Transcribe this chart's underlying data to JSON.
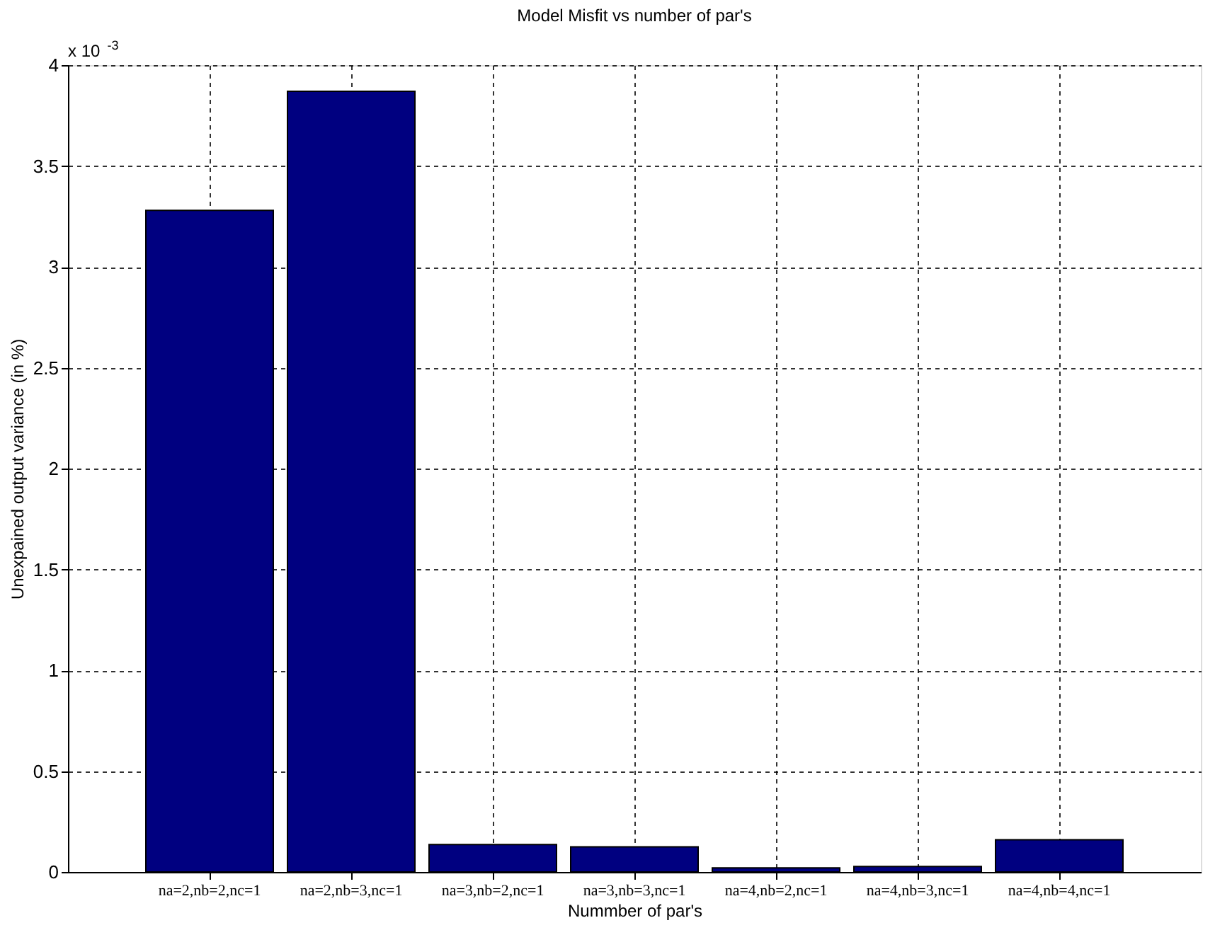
{
  "chart_data": {
    "type": "bar",
    "title": "Model Misfit vs number of par's",
    "xlabel": "Nummber of par's",
    "ylabel": "Unexpained output variance (in %)",
    "categories": [
      "na=2,nb=2,nc=1",
      "na=2,nb=3,nc=1",
      "na=3,nb=2,nc=1",
      "na=3,nb=3,nc=1",
      "na=4,nb=2,nc=1",
      "na=4,nb=3,nc=1",
      "na=4,nb=4,nc=1"
    ],
    "values": [
      3.28,
      3.87,
      0.136,
      0.125,
      0.02,
      0.027,
      0.16
    ],
    "color": "#000080",
    "ylim": [
      0,
      4
    ],
    "yticks": [
      0,
      0.5,
      1,
      1.5,
      2,
      2.5,
      3,
      3.5,
      4
    ],
    "grid": true,
    "annotations": [
      "x 10$^{-3}$"
    ]
  }
}
